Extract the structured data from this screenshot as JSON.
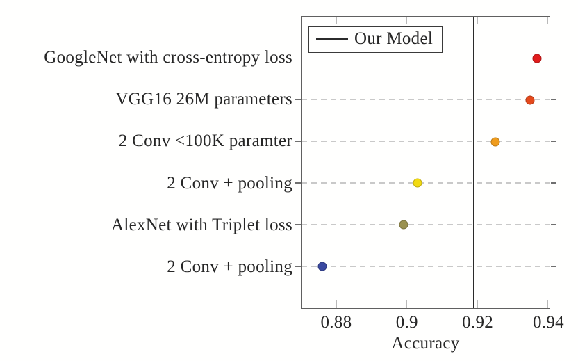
{
  "chart_data": {
    "type": "scatter",
    "orientation": "horizontal-dot-plot",
    "title": "",
    "xlabel": "Accuracy",
    "ylabel": "",
    "categories": [
      "GoogleNet with cross-entropy loss",
      "VGG16 26M parameters",
      "2 Conv <100K paramter",
      "2 Conv + pooling",
      "AlexNet with Triplet loss",
      "2 Conv + pooling"
    ],
    "values": [
      0.937,
      0.935,
      0.925,
      0.903,
      0.899,
      0.876
    ],
    "point_colors": [
      "#e11c1c",
      "#e4491c",
      "#ef9c1d",
      "#f2da12",
      "#9a9150",
      "#3a49a0"
    ],
    "xlim": [
      0.87,
      0.9405
    ],
    "xticks": [
      0.88,
      0.9,
      0.92,
      0.94
    ],
    "xtick_labels": [
      "0.88",
      "0.9",
      "0.92",
      "0.94"
    ],
    "reference_line": {
      "label": "Our Model",
      "value": 0.919,
      "color": "#2b2b2b"
    },
    "legend_position": "top-left",
    "grid": "horizontal-dashed",
    "grid_color": "#c9c9c9",
    "axis_border_color": "#606060",
    "text_color": "#262626"
  }
}
